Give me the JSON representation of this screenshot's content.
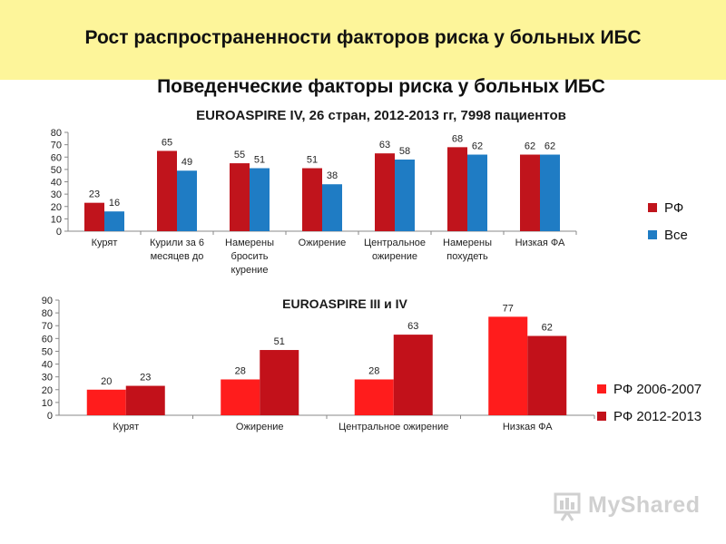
{
  "banner_title": "Рост распространенности факторов риска у больных ИБС",
  "slide_title": "Поведенческие факторы риска у больных ИБС",
  "chart1_subtitle": "EUROASPIRE IV,  26 стран, 2012-2013 гг, 7998 пациентов",
  "chart2_subtitle": "EUROASPIRE III   и  IV",
  "watermark_text": "MyShared",
  "chart_data": [
    {
      "type": "bar",
      "title": "EUROASPIRE IV,  26 стран, 2012-2013 гг, 7998 пациентов",
      "categories": [
        [
          "Курят"
        ],
        [
          "Курили за 6",
          "месяцев до"
        ],
        [
          "Намерены",
          "бросить",
          "курение"
        ],
        [
          "Ожирение"
        ],
        [
          "Центральное",
          "ожирение"
        ],
        [
          "Намерены",
          "похудеть"
        ],
        [
          "Низкая ФА"
        ]
      ],
      "series": [
        {
          "name": "РФ",
          "values": [
            23,
            65,
            55,
            51,
            63,
            68,
            62
          ],
          "color": "#c0141c"
        },
        {
          "name": "Все",
          "values": [
            16,
            49,
            51,
            38,
            58,
            62,
            62
          ],
          "color": "#1f7cc4"
        }
      ],
      "ylim": [
        0,
        80
      ],
      "yticks": [
        0,
        10,
        20,
        30,
        40,
        50,
        60,
        70,
        80
      ],
      "legend": "right",
      "grid": false
    },
    {
      "type": "bar",
      "title": "EUROASPIRE III   и  IV",
      "categories": [
        [
          "Курят"
        ],
        [
          "Ожирение"
        ],
        [
          "Центральное ожирение"
        ],
        [
          "Низкая ФА"
        ]
      ],
      "series": [
        {
          "name": "РФ 2006-2007",
          "values": [
            20,
            28,
            28,
            77
          ],
          "color": "#ff1c1c"
        },
        {
          "name": "РФ 2012-2013",
          "values": [
            23,
            51,
            63,
            62
          ],
          "color": "#c2111a"
        }
      ],
      "ylim": [
        0,
        90
      ],
      "yticks": [
        0,
        10,
        20,
        30,
        40,
        50,
        60,
        70,
        80,
        90
      ],
      "legend": "right",
      "grid": false
    }
  ]
}
